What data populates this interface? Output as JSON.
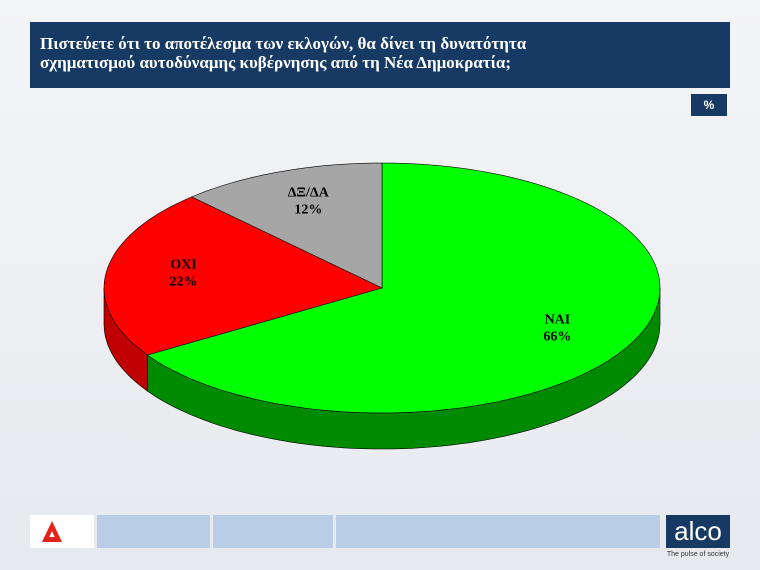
{
  "chart_data": {
    "type": "pie",
    "title": "Πιστεύετε ότι το αποτέλεσμα των εκλογών, θα δίνει τη δυνατότητα σχηματισμού αυτοδύναμης κυβέρνησης από τη Νέα Δημοκρατία;",
    "unit": "%",
    "categories": [
      "ΝΑΙ",
      "ΟΧΙ",
      "ΔΞ/ΔΑ"
    ],
    "values": [
      66,
      22,
      12
    ],
    "value_labels": [
      "66%",
      "22%",
      "12%"
    ],
    "colors": [
      "#00ff00",
      "#ff0000",
      "#a6a6a6"
    ],
    "side_colors": [
      "#008a00",
      "#c00000",
      "#7f7f7f"
    ]
  },
  "footer": {
    "brand": "alco",
    "tagline": "The pulse of society"
  }
}
